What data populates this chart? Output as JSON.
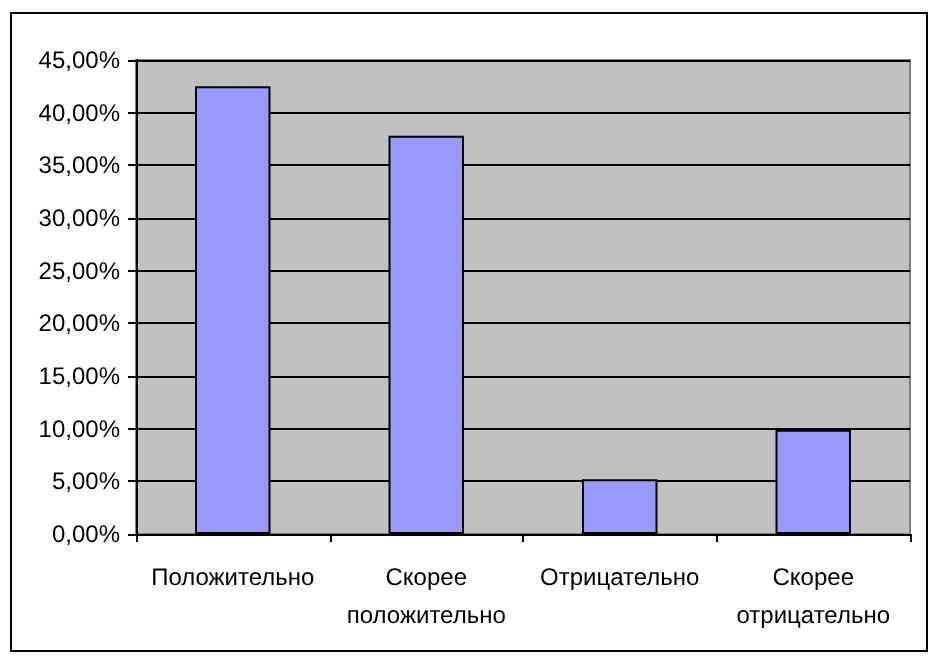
{
  "chart_data": {
    "type": "bar",
    "categories": [
      "Положительно",
      "Скорее\nположительно",
      "Отрицательно",
      "Скорее\nотрицательно"
    ],
    "values": [
      42.5,
      37.8,
      5.2,
      9.9
    ],
    "color": "#9999ff",
    "ylim": [
      0,
      45
    ],
    "yticks": [
      {
        "value": 0,
        "label": "0,00%"
      },
      {
        "value": 5,
        "label": "5,00%"
      },
      {
        "value": 10,
        "label": "10,00%"
      },
      {
        "value": 15,
        "label": "15,00%"
      },
      {
        "value": 20,
        "label": "20,00%"
      },
      {
        "value": 25,
        "label": "25,00%"
      },
      {
        "value": 30,
        "label": "30,00%"
      },
      {
        "value": 35,
        "label": "35,00%"
      },
      {
        "value": 40,
        "label": "40,00%"
      },
      {
        "value": 45,
        "label": "45,00%"
      }
    ],
    "grid": "y"
  }
}
